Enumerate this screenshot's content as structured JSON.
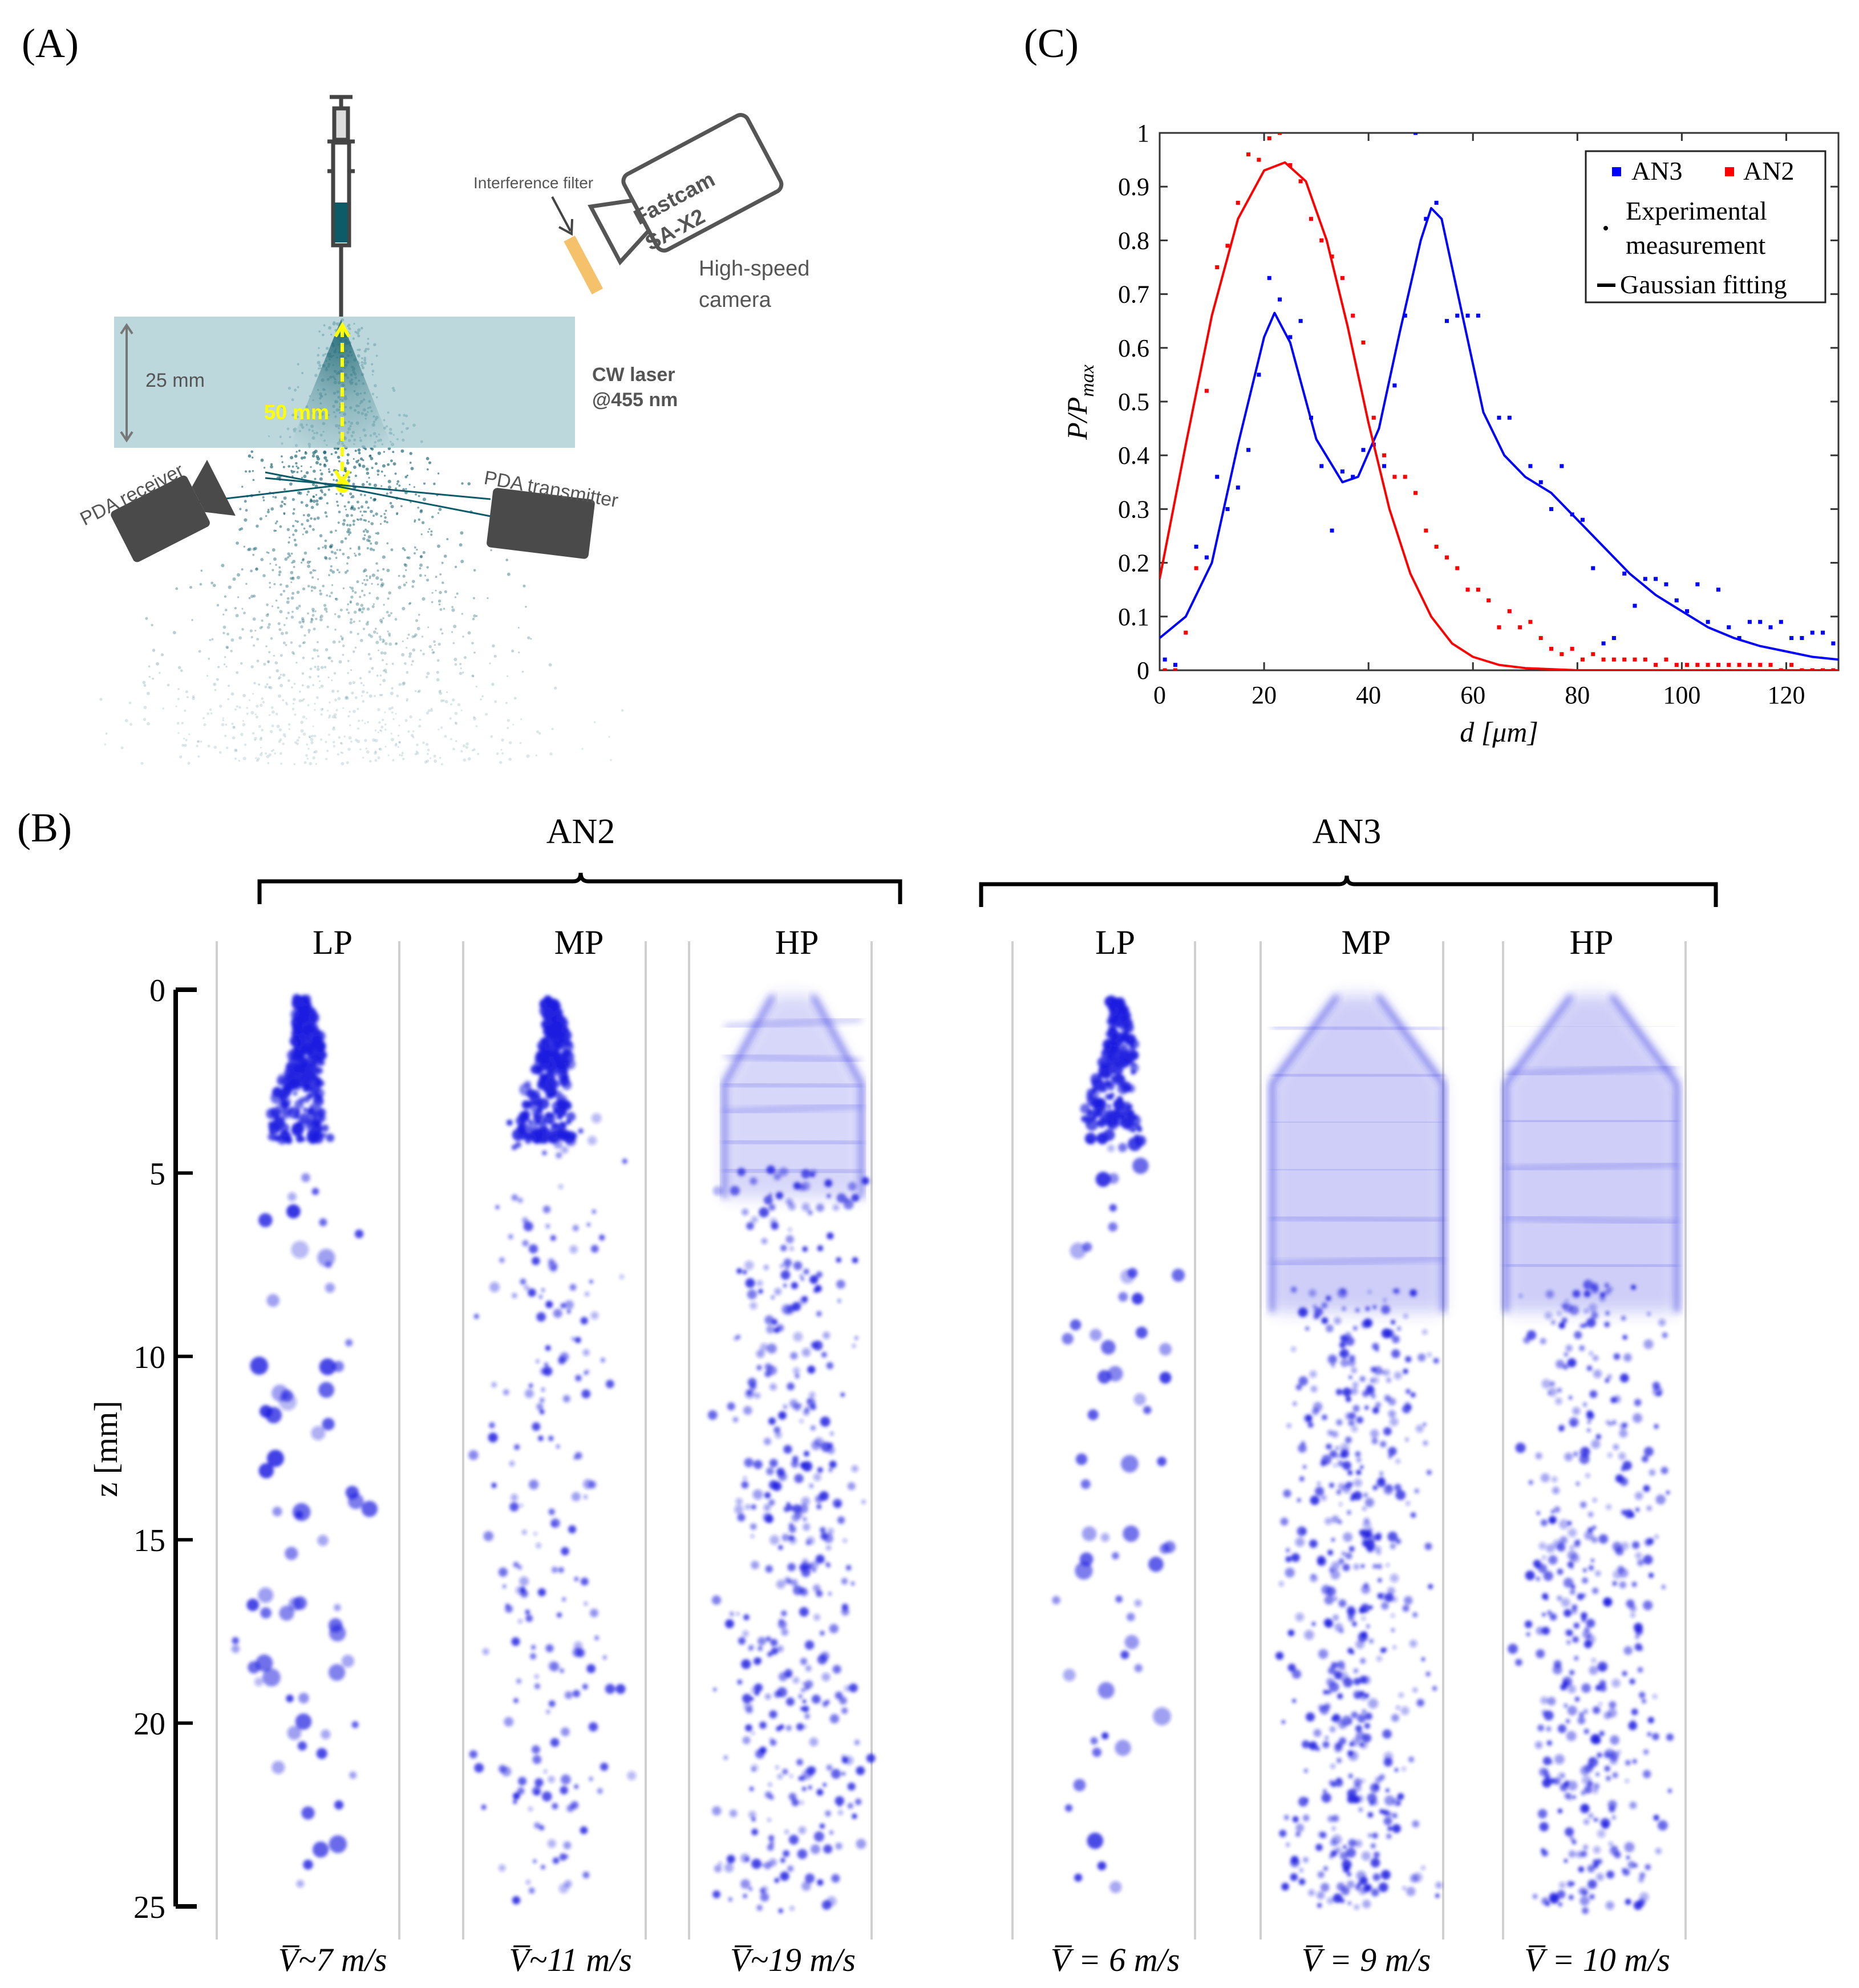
{
  "panel_labels": {
    "a": "(A)",
    "b": "(B)",
    "c": "(C)"
  },
  "schematic": {
    "interference_filter": "Interference filter",
    "camera_brand_line1": "Fastcam",
    "camera_brand_line2": "SA-X2",
    "high_speed_line1": "High-speed",
    "high_speed_line2": "camera",
    "laser_line1": "CW laser",
    "laser_line2": "@455 nm",
    "distance_25": "25 mm",
    "distance_50": "50 mm",
    "pda_receiver": "PDA receiver",
    "pda_transmitter": "PDA transmitter",
    "colors": {
      "laser_sheet": "#a9cdd4",
      "spray": "#0d5b69",
      "marker": "#ffff00",
      "device": "#4a4a4a",
      "filter": "#f5c26b"
    }
  },
  "chart_data": {
    "type": "scatter",
    "xlabel": "d [μm]",
    "ylabel": "P/Pmax",
    "xlim": [
      0,
      130
    ],
    "ylim": [
      0,
      1
    ],
    "x_ticks": [
      0,
      20,
      40,
      60,
      80,
      100,
      120
    ],
    "y_ticks": [
      0,
      0.1,
      0.2,
      0.3,
      0.4,
      0.5,
      0.6,
      0.7,
      0.8,
      0.9,
      1
    ],
    "legend": {
      "placement": "top-right",
      "series": [
        "AN3",
        "AN2"
      ],
      "dot_label_line1": "Experimental",
      "dot_label_line2": "measurement",
      "line_label": "Gaussian fitting"
    },
    "series": [
      {
        "name": "AN3",
        "color": "#0000ff",
        "points": [
          [
            1,
            0.02
          ],
          [
            3,
            0.01
          ],
          [
            7,
            0.23
          ],
          [
            9,
            0.21
          ],
          [
            11,
            0.36
          ],
          [
            13,
            0.3
          ],
          [
            15,
            0.34
          ],
          [
            17,
            0.41
          ],
          [
            19,
            0.55
          ],
          [
            21,
            0.73
          ],
          [
            23,
            0.69
          ],
          [
            25,
            0.62
          ],
          [
            27,
            0.65
          ],
          [
            29,
            0.47
          ],
          [
            31,
            0.38
          ],
          [
            33,
            0.26
          ],
          [
            35,
            0.37
          ],
          [
            37,
            0.36
          ],
          [
            39,
            0.41
          ],
          [
            41,
            0.42
          ],
          [
            43,
            0.38
          ],
          [
            45,
            0.53
          ],
          [
            47,
            0.66
          ],
          [
            49,
            1.0
          ],
          [
            51,
            0.84
          ],
          [
            53,
            0.87
          ],
          [
            55,
            0.65
          ],
          [
            57,
            0.66
          ],
          [
            59,
            0.66
          ],
          [
            61,
            0.66
          ],
          [
            65,
            0.47
          ],
          [
            67,
            0.47
          ],
          [
            71,
            0.38
          ],
          [
            73,
            0.35
          ],
          [
            75,
            0.3
          ],
          [
            77,
            0.38
          ],
          [
            79,
            0.29
          ],
          [
            81,
            0.28
          ],
          [
            83,
            0.19
          ],
          [
            85,
            0.05
          ],
          [
            87,
            0.06
          ],
          [
            89,
            0.18
          ],
          [
            91,
            0.12
          ],
          [
            93,
            0.17
          ],
          [
            95,
            0.17
          ],
          [
            97,
            0.16
          ],
          [
            99,
            0.13
          ],
          [
            101,
            0.11
          ],
          [
            103,
            0.16
          ],
          [
            105,
            0.09
          ],
          [
            107,
            0.15
          ],
          [
            109,
            0.08
          ],
          [
            111,
            0.06
          ],
          [
            113,
            0.09
          ],
          [
            115,
            0.09
          ],
          [
            117,
            0.08
          ],
          [
            119,
            0.09
          ],
          [
            121,
            0.06
          ],
          [
            123,
            0.06
          ],
          [
            125,
            0.07
          ],
          [
            127,
            0.07
          ],
          [
            129,
            0.05
          ]
        ],
        "fit": [
          [
            0,
            0.06
          ],
          [
            5,
            0.1
          ],
          [
            10,
            0.2
          ],
          [
            15,
            0.42
          ],
          [
            20,
            0.62
          ],
          [
            22,
            0.665
          ],
          [
            25,
            0.61
          ],
          [
            30,
            0.43
          ],
          [
            35,
            0.35
          ],
          [
            38,
            0.36
          ],
          [
            42,
            0.45
          ],
          [
            46,
            0.63
          ],
          [
            50,
            0.8
          ],
          [
            52,
            0.86
          ],
          [
            54,
            0.84
          ],
          [
            58,
            0.66
          ],
          [
            62,
            0.48
          ],
          [
            66,
            0.4
          ],
          [
            70,
            0.36
          ],
          [
            75,
            0.33
          ],
          [
            80,
            0.28
          ],
          [
            85,
            0.23
          ],
          [
            90,
            0.18
          ],
          [
            95,
            0.14
          ],
          [
            100,
            0.11
          ],
          [
            105,
            0.08
          ],
          [
            110,
            0.06
          ],
          [
            115,
            0.045
          ],
          [
            120,
            0.035
          ],
          [
            125,
            0.025
          ],
          [
            130,
            0.02
          ]
        ]
      },
      {
        "name": "AN2",
        "color": "#ff0000",
        "points": [
          [
            1,
            0.0
          ],
          [
            3,
            0.0
          ],
          [
            5,
            0.07
          ],
          [
            7,
            0.19
          ],
          [
            9,
            0.52
          ],
          [
            11,
            0.75
          ],
          [
            13,
            0.79
          ],
          [
            15,
            0.87
          ],
          [
            17,
            0.96
          ],
          [
            19,
            0.95
          ],
          [
            21,
            0.99
          ],
          [
            23,
            1.0
          ],
          [
            25,
            0.94
          ],
          [
            27,
            0.91
          ],
          [
            29,
            0.84
          ],
          [
            31,
            0.8
          ],
          [
            33,
            0.77
          ],
          [
            35,
            0.73
          ],
          [
            37,
            0.66
          ],
          [
            39,
            0.61
          ],
          [
            41,
            0.47
          ],
          [
            43,
            0.4
          ],
          [
            45,
            0.36
          ],
          [
            47,
            0.36
          ],
          [
            49,
            0.33
          ],
          [
            51,
            0.26
          ],
          [
            53,
            0.23
          ],
          [
            55,
            0.21
          ],
          [
            57,
            0.19
          ],
          [
            59,
            0.15
          ],
          [
            61,
            0.15
          ],
          [
            63,
            0.13
          ],
          [
            65,
            0.08
          ],
          [
            67,
            0.11
          ],
          [
            69,
            0.08
          ],
          [
            71,
            0.09
          ],
          [
            73,
            0.06
          ],
          [
            75,
            0.04
          ],
          [
            77,
            0.03
          ],
          [
            79,
            0.04
          ],
          [
            81,
            0.02
          ],
          [
            83,
            0.03
          ],
          [
            85,
            0.02
          ],
          [
            87,
            0.02
          ],
          [
            89,
            0.02
          ],
          [
            91,
            0.02
          ],
          [
            93,
            0.02
          ],
          [
            95,
            0.01
          ],
          [
            97,
            0.02
          ],
          [
            99,
            0.01
          ],
          [
            101,
            0.01
          ],
          [
            103,
            0.01
          ],
          [
            105,
            0.01
          ],
          [
            107,
            0.01
          ],
          [
            109,
            0.01
          ],
          [
            111,
            0.01
          ],
          [
            113,
            0.01
          ],
          [
            115,
            0.01
          ],
          [
            117,
            0.01
          ],
          [
            119,
            0.0
          ],
          [
            121,
            0.01
          ],
          [
            123,
            0.0
          ],
          [
            125,
            0.0
          ],
          [
            127,
            0.0
          ],
          [
            129,
            0.0
          ]
        ],
        "fit": [
          [
            0,
            0.17
          ],
          [
            5,
            0.42
          ],
          [
            10,
            0.66
          ],
          [
            15,
            0.84
          ],
          [
            20,
            0.93
          ],
          [
            24,
            0.945
          ],
          [
            28,
            0.91
          ],
          [
            32,
            0.8
          ],
          [
            36,
            0.64
          ],
          [
            40,
            0.46
          ],
          [
            44,
            0.3
          ],
          [
            48,
            0.18
          ],
          [
            52,
            0.1
          ],
          [
            56,
            0.05
          ],
          [
            60,
            0.025
          ],
          [
            65,
            0.01
          ],
          [
            70,
            0.004
          ],
          [
            80,
            0.0
          ],
          [
            130,
            0.0
          ]
        ]
      }
    ]
  },
  "sprays": {
    "groups": [
      {
        "name": "AN2",
        "columns": [
          "LP",
          "MP",
          "HP"
        ]
      },
      {
        "name": "AN3",
        "columns": [
          "LP",
          "MP",
          "HP"
        ]
      }
    ],
    "z_axis": {
      "label": "z [mm]",
      "ticks": [
        "0",
        "5",
        "10",
        "15",
        "20",
        "25"
      ]
    },
    "velocities": [
      "V̅~7 m/s",
      "V̅~11 m/s",
      "V̅~19 m/s",
      "V̅ = 6 m/s",
      "V̅ = 9 m/s",
      "V̅ = 10 m/s"
    ],
    "color": "#2020e0"
  }
}
